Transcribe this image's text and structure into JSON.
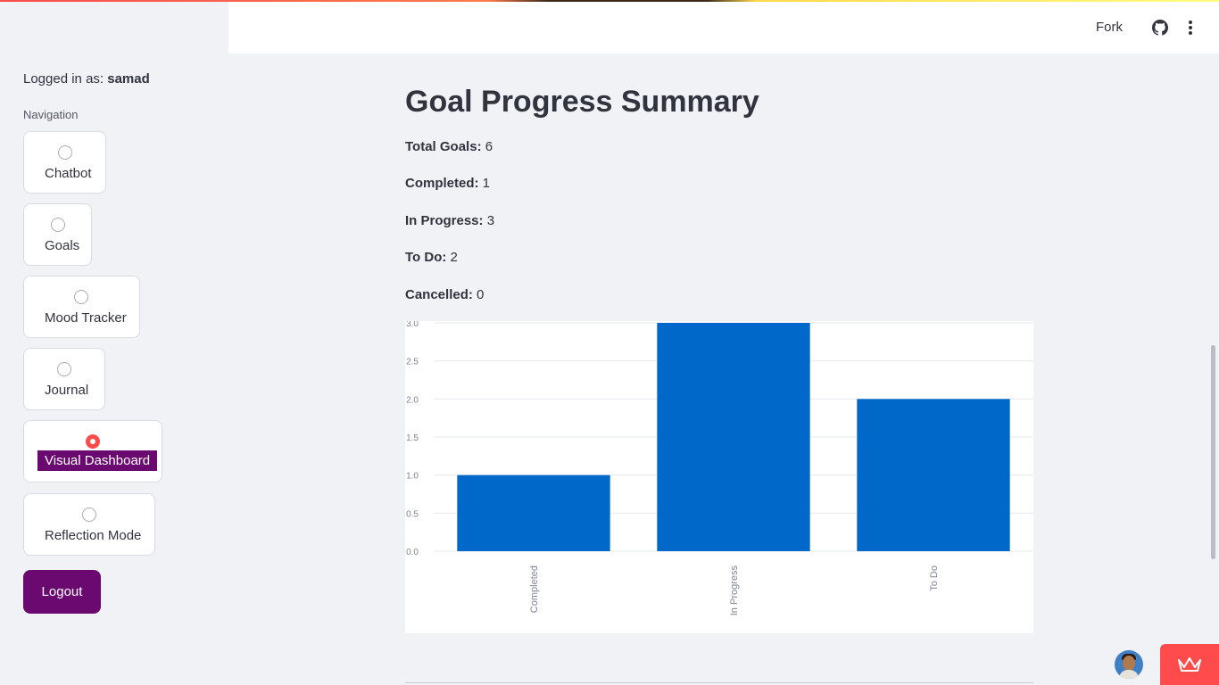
{
  "sidebar": {
    "logged_in_prefix": "Logged in as:",
    "username": "samad",
    "nav_label": "Navigation",
    "items": [
      {
        "label": "Chatbot",
        "selected": false
      },
      {
        "label": "Goals",
        "selected": false
      },
      {
        "label": "Mood Tracker",
        "selected": false
      },
      {
        "label": "Journal",
        "selected": false
      },
      {
        "label": "Visual Dashboard",
        "selected": true
      },
      {
        "label": "Reflection Mode",
        "selected": false
      }
    ],
    "logout_label": "Logout"
  },
  "header": {
    "fork_label": "Fork",
    "github_icon": "github-icon",
    "menu_icon": "kebab-menu-icon"
  },
  "main": {
    "title": "Goal Progress Summary",
    "stats": [
      {
        "label": "Total Goals:",
        "value": "6"
      },
      {
        "label": "Completed:",
        "value": "1"
      },
      {
        "label": "In Progress:",
        "value": "3"
      },
      {
        "label": "To Do:",
        "value": "2"
      },
      {
        "label": "Cancelled:",
        "value": "0"
      }
    ]
  },
  "chart_data": {
    "type": "bar",
    "categories": [
      "Completed",
      "In Progress",
      "To Do"
    ],
    "values": [
      1,
      3,
      2
    ],
    "ylim": [
      0,
      3
    ],
    "yticks": [
      "0.0",
      "0.5",
      "1.0",
      "1.5",
      "2.0",
      "2.5",
      "3.0"
    ],
    "bar_color": "#0068c9",
    "grid": true
  },
  "colors": {
    "accent": "#6a0a70",
    "radio_selected": "#ff4b4b"
  }
}
